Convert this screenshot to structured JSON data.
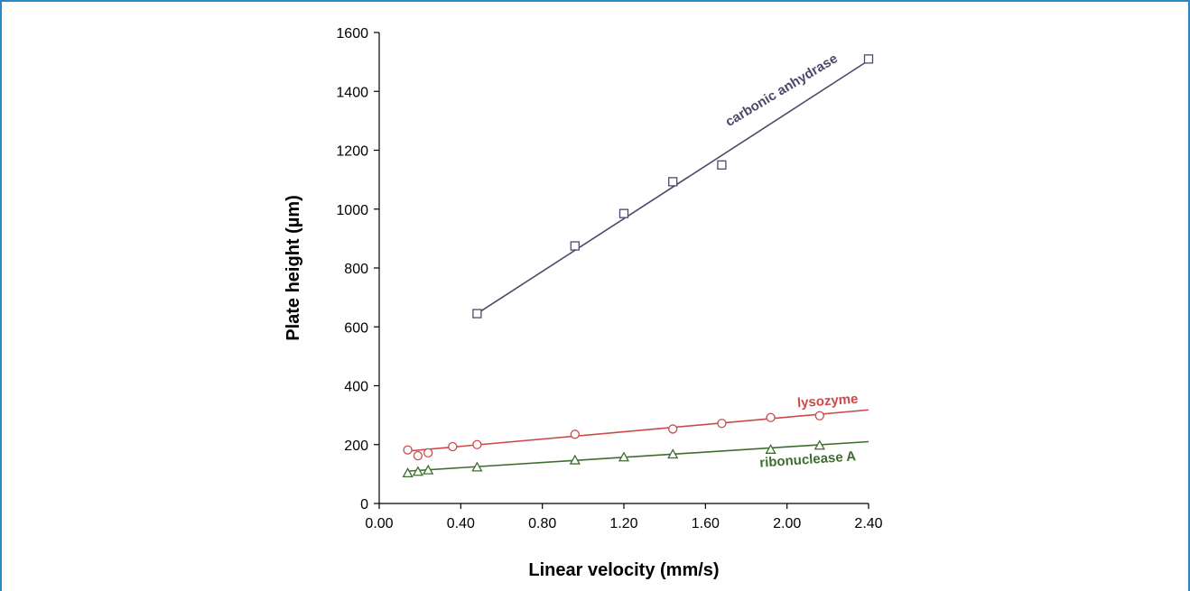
{
  "chart_data": {
    "type": "scatter",
    "xlabel": "Linear velocity (mm/s)",
    "ylabel": "Plate height (µm)",
    "xlim": [
      0.0,
      2.4
    ],
    "ylim": [
      0,
      1600
    ],
    "xticks": [
      "0.00",
      "0.40",
      "0.80",
      "1.20",
      "1.60",
      "2.00",
      "2.40"
    ],
    "yticks": [
      "0",
      "200",
      "400",
      "600",
      "800",
      "1000",
      "1200",
      "1400",
      "1600"
    ],
    "grid": false,
    "series": [
      {
        "name": "carbonic anhydrase",
        "marker": "square",
        "color": "#4a4a6a",
        "x": [
          0.48,
          0.96,
          1.2,
          1.44,
          1.68,
          2.4
        ],
        "y": [
          645,
          875,
          985,
          1093,
          1150,
          1510
        ],
        "fit": [
          [
            0.48,
            645
          ],
          [
            2.4,
            1505
          ]
        ]
      },
      {
        "name": "lysozyme",
        "marker": "circle",
        "color": "#cc4a4a",
        "x": [
          0.14,
          0.19,
          0.24,
          0.36,
          0.48,
          0.96,
          1.44,
          1.68,
          1.92,
          2.16
        ],
        "y": [
          182,
          162,
          172,
          193,
          200,
          235,
          253,
          272,
          292,
          298
        ],
        "fit": [
          [
            0.14,
            178
          ],
          [
            2.4,
            318
          ]
        ]
      },
      {
        "name": "ribonuclease A",
        "marker": "triangle",
        "color": "#3d6e2e",
        "x": [
          0.14,
          0.19,
          0.24,
          0.48,
          0.96,
          1.2,
          1.44,
          1.92,
          2.16
        ],
        "y": [
          103,
          108,
          113,
          123,
          147,
          157,
          167,
          183,
          197
        ],
        "fit": [
          [
            0.14,
            110
          ],
          [
            2.4,
            210
          ]
        ]
      }
    ]
  }
}
